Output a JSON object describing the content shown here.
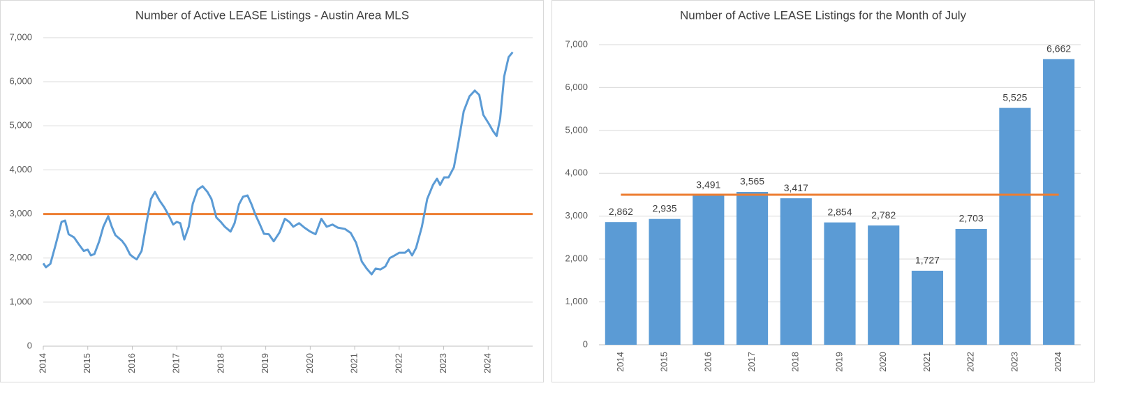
{
  "chart_data": [
    {
      "type": "line",
      "title": "Number of Active LEASE Listings - Austin Area MLS",
      "x": [
        2014.0,
        2014.06,
        2014.16,
        2014.28,
        2014.41,
        2014.49,
        2014.57,
        2014.69,
        2014.8,
        2014.91,
        2015.0,
        2015.07,
        2015.15,
        2015.26,
        2015.35,
        2015.46,
        2015.54,
        2015.62,
        2015.77,
        2015.85,
        2015.95,
        2016.01,
        2016.1,
        2016.21,
        2016.32,
        2016.42,
        2016.51,
        2016.61,
        2016.72,
        2016.83,
        2016.92,
        2017.0,
        2017.08,
        2017.17,
        2017.27,
        2017.36,
        2017.47,
        2017.58,
        2017.69,
        2017.78,
        2017.89,
        2017.99,
        2018.08,
        2018.21,
        2018.3,
        2018.4,
        2018.49,
        2018.59,
        2018.68,
        2018.77,
        2018.87,
        2018.96,
        2019.07,
        2019.18,
        2019.31,
        2019.43,
        2019.53,
        2019.62,
        2019.75,
        2019.87,
        2020.0,
        2020.12,
        2020.25,
        2020.37,
        2020.5,
        2020.62,
        2020.78,
        2020.91,
        2021.03,
        2021.16,
        2021.27,
        2021.38,
        2021.47,
        2021.58,
        2021.69,
        2021.79,
        2021.9,
        2022.0,
        2022.13,
        2022.21,
        2022.29,
        2022.38,
        2022.51,
        2022.63,
        2022.76,
        2022.85,
        2022.92,
        2023.01,
        2023.11,
        2023.23,
        2023.33,
        2023.45,
        2023.58,
        2023.7,
        2023.8,
        2023.89,
        2024.02,
        2024.11,
        2024.19,
        2024.27,
        2024.36,
        2024.46,
        2024.55
      ],
      "series": [
        {
          "color": "#5b9bd5",
          "values": [
            1880,
            1790,
            1870,
            2310,
            2820,
            2850,
            2540,
            2470,
            2310,
            2160,
            2190,
            2060,
            2090,
            2390,
            2710,
            2950,
            2710,
            2520,
            2390,
            2280,
            2080,
            2030,
            1970,
            2160,
            2800,
            3340,
            3500,
            3310,
            3150,
            2950,
            2760,
            2820,
            2790,
            2420,
            2710,
            3230,
            3550,
            3630,
            3500,
            3340,
            2920,
            2820,
            2710,
            2600,
            2790,
            3220,
            3390,
            3420,
            3220,
            2980,
            2760,
            2550,
            2540,
            2380,
            2580,
            2890,
            2820,
            2710,
            2790,
            2690,
            2600,
            2540,
            2890,
            2710,
            2760,
            2690,
            2660,
            2570,
            2350,
            1920,
            1760,
            1630,
            1760,
            1740,
            1810,
            2000,
            2060,
            2120,
            2120,
            2190,
            2060,
            2230,
            2710,
            3340,
            3660,
            3800,
            3660,
            3830,
            3830,
            4060,
            4610,
            5330,
            5670,
            5800,
            5700,
            5250,
            5040,
            4880,
            4770,
            5170,
            6120,
            6560,
            6670
          ]
        }
      ],
      "hline": {
        "value": 3000,
        "color": "#ed7d31"
      },
      "xlim": [
        2014,
        2025
      ],
      "xticks": [
        2014,
        2015,
        2016,
        2017,
        2018,
        2019,
        2020,
        2021,
        2022,
        2023,
        2024
      ],
      "ylim": [
        0,
        7000
      ],
      "yticks": [
        0,
        {
          "value": 1000,
          "label": "1,000"
        },
        {
          "value": 2000,
          "label": "2,000"
        },
        {
          "value": 3000,
          "label": "3,000"
        },
        {
          "value": 4000,
          "label": "4,000"
        },
        {
          "value": 5000,
          "label": "5,000"
        },
        {
          "value": 6000,
          "label": "6,000"
        },
        {
          "value": 7000,
          "label": "7,000"
        }
      ],
      "grid": true
    },
    {
      "type": "bar",
      "title": "Number of Active LEASE Listings for the Month of July",
      "categories": [
        "2014",
        "2015",
        "2016",
        "2017",
        "2018",
        "2019",
        "2020",
        "2021",
        "2022",
        "2023",
        "2024"
      ],
      "values": [
        2862,
        2935,
        3491,
        3565,
        3417,
        2854,
        2782,
        1727,
        2703,
        5525,
        6662
      ],
      "value_labels": [
        "2,862",
        "2,935",
        "3,491",
        "3,565",
        "3,417",
        "2,854",
        "2,782",
        "1,727",
        "2,703",
        "5,525",
        "6,662"
      ],
      "color": "#5b9bd5",
      "hline": {
        "value": 3500,
        "color": "#ed7d31"
      },
      "ylim": [
        0,
        7000
      ],
      "yticks": [
        0,
        {
          "value": 1000,
          "label": "1,000"
        },
        {
          "value": 2000,
          "label": "2,000"
        },
        {
          "value": 3000,
          "label": "3,000"
        },
        {
          "value": 4000,
          "label": "4,000"
        },
        {
          "value": 5000,
          "label": "5,000"
        },
        {
          "value": 6000,
          "label": "6,000"
        },
        {
          "value": 7000,
          "label": "7,000"
        }
      ],
      "grid": true
    }
  ]
}
